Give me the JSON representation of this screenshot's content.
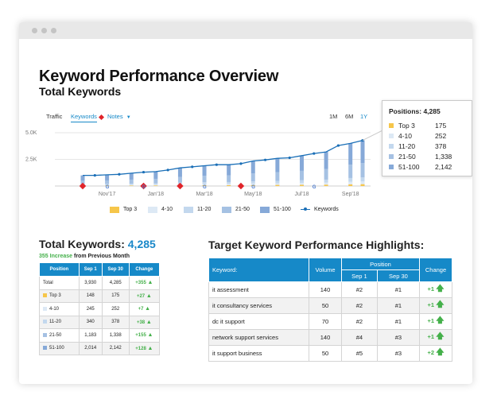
{
  "page": {
    "title": "Keyword Performance Overview",
    "subtitle": "Total Keywords"
  },
  "chart_controls": {
    "tabs": [
      {
        "label": "Traffic"
      },
      {
        "label": "Keywords"
      },
      {
        "label": "Notes"
      }
    ],
    "ranges": [
      "1M",
      "6M",
      "1Y"
    ]
  },
  "colors": {
    "accent": "#1689c8",
    "increase": "#44b04a",
    "top3": "#f6c64a",
    "pos4_10": "#dde9f5",
    "pos11_20": "#c3d8ee",
    "pos21_50": "#a5c1e3",
    "pos51_100": "#86a9d8",
    "line": "#1a6fb7",
    "note": "#e0242a"
  },
  "tooltip": {
    "title": "Positions: 4,285",
    "rows": [
      {
        "label": "Top 3",
        "value": "175"
      },
      {
        "label": "4-10",
        "value": "252"
      },
      {
        "label": "11-20",
        "value": "378"
      },
      {
        "label": "21-50",
        "value": "1,338"
      },
      {
        "label": "51-100",
        "value": "2,142"
      }
    ]
  },
  "chart_data": {
    "type": "bar",
    "x_tick_labels": [
      "Nov'17",
      "Jan'18",
      "Mar'18",
      "May'18",
      "Jul'18",
      "Sep'18"
    ],
    "y_tick_labels": [
      "5.0K",
      "2.5K"
    ],
    "ylim": [
      0,
      5000
    ],
    "legend": [
      "Top 3",
      "4-10",
      "11-20",
      "21-50",
      "51-100",
      "Keywords"
    ],
    "series": [
      {
        "name": "Keywords",
        "values": [
          1000,
          1000,
          1050,
          1100,
          1200,
          1300,
          1350,
          1500,
          1700,
          1800,
          1900,
          2000,
          2000,
          2100,
          2350,
          2450,
          2600,
          2650,
          2850,
          3050,
          3200,
          3800,
          4000,
          4285
        ]
      }
    ],
    "notes_index": [
      0,
      5,
      8,
      13
    ]
  },
  "summary": {
    "title_prefix": "Total Keywords:",
    "total": "4,285",
    "increase": "355 Increase",
    "increase_suffix": "from Previous Month",
    "columns": [
      "Position",
      "Sep 1",
      "Sep 30",
      "Change"
    ],
    "rows": [
      {
        "position": "Total",
        "color": "",
        "sep1": "3,930",
        "sep30": "4,285",
        "change": "+355"
      },
      {
        "position": "Top 3",
        "color": "#f6c64a",
        "sep1": "148",
        "sep30": "175",
        "change": "+27"
      },
      {
        "position": "4-10",
        "color": "#dde9f5",
        "sep1": "245",
        "sep30": "252",
        "change": "+7"
      },
      {
        "position": "11-20",
        "color": "#c3d8ee",
        "sep1": "340",
        "sep30": "378",
        "change": "+38"
      },
      {
        "position": "21-50",
        "color": "#a5c1e3",
        "sep1": "1,183",
        "sep30": "1,338",
        "change": "+155"
      },
      {
        "position": "51-100",
        "color": "#86a9d8",
        "sep1": "2,014",
        "sep30": "2,142",
        "change": "+128"
      }
    ]
  },
  "highlights": {
    "title": "Target Keyword Performance Highlights:",
    "columns": {
      "keyword": "Keyword",
      "volume": "Volume",
      "position": "Position",
      "sep1": "Sep 1",
      "sep30": "Sep 30",
      "change": "Change"
    },
    "rows": [
      {
        "keyword": "it assessment",
        "volume": "140",
        "sep1": "#2",
        "sep30": "#1",
        "change": "+1"
      },
      {
        "keyword": "it consultancy services",
        "volume": "50",
        "sep1": "#2",
        "sep30": "#1",
        "change": "+1"
      },
      {
        "keyword": "dc it support",
        "volume": "70",
        "sep1": "#2",
        "sep30": "#1",
        "change": "+1"
      },
      {
        "keyword": "network support services",
        "volume": "140",
        "sep1": "#4",
        "sep30": "#3",
        "change": "+1"
      },
      {
        "keyword": "it support business",
        "volume": "50",
        "sep1": "#5",
        "sep30": "#3",
        "change": "+2"
      }
    ]
  }
}
